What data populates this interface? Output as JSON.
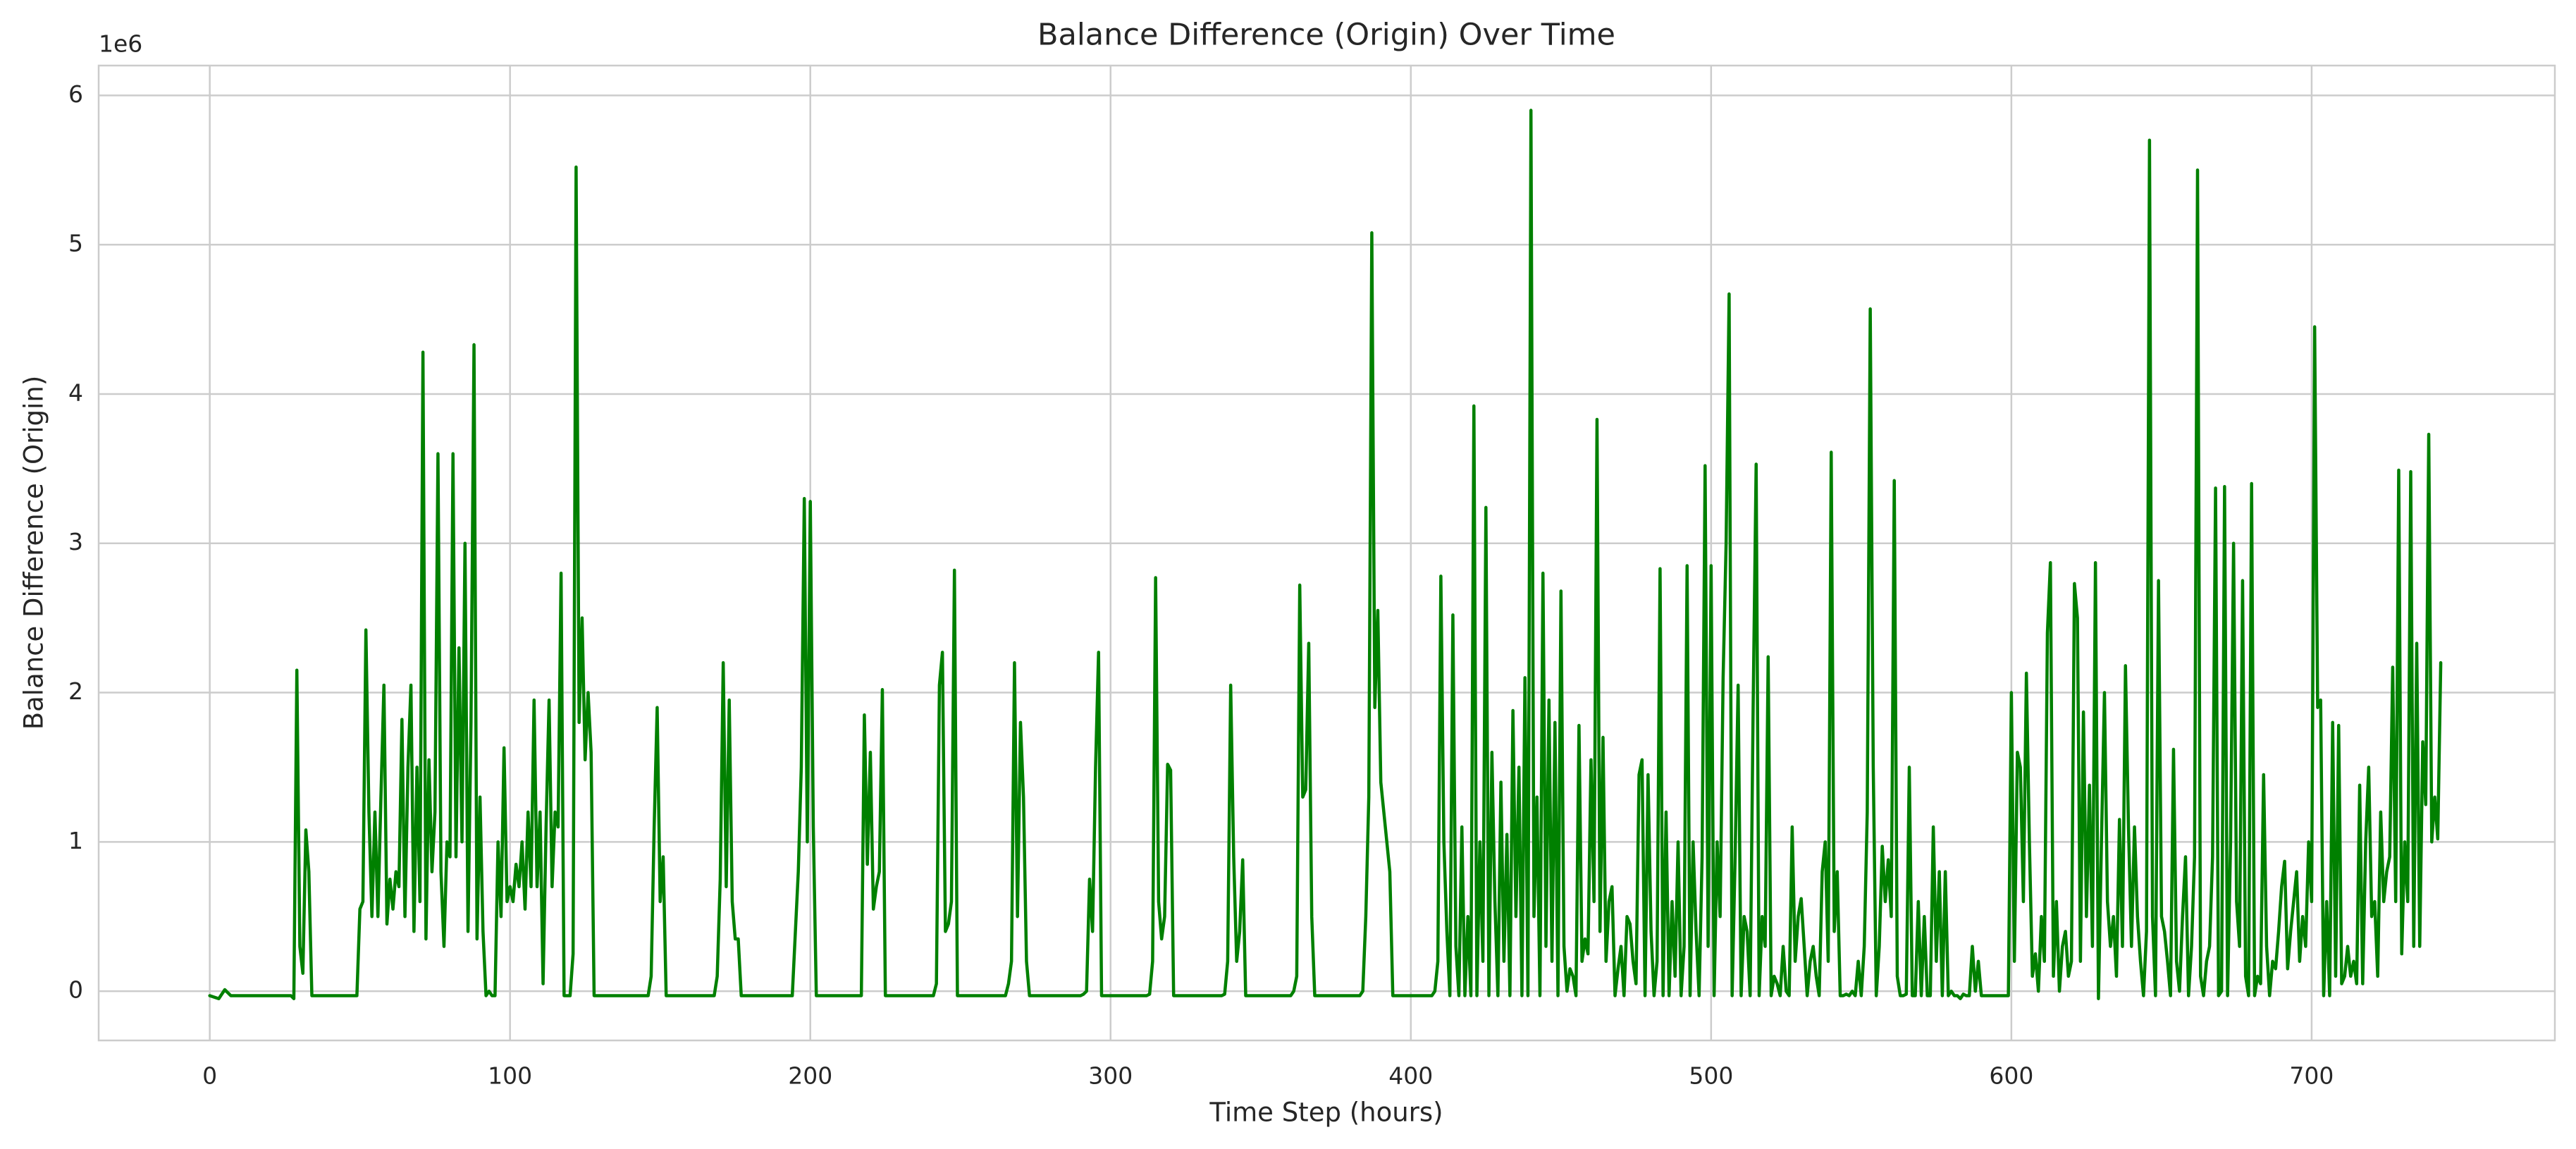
{
  "chart_data": {
    "type": "line",
    "title": "Balance Difference (Origin) Over Time",
    "x_label": "Time Step (hours)",
    "y_label": "Balance Difference (Origin)",
    "y_offset_text": "1e6",
    "color": "#008000",
    "grid": true,
    "xlim": [
      -37,
      781
    ],
    "ylim": [
      -0.33,
      6.2
    ],
    "xticks": [
      0,
      100,
      200,
      300,
      400,
      500,
      600,
      700
    ],
    "yticks": [
      0,
      1,
      2,
      3,
      4,
      5,
      6
    ],
    "x": [
      0,
      3,
      5,
      7,
      27,
      28,
      29,
      30,
      31,
      32,
      33,
      34,
      49,
      50,
      51,
      52,
      53,
      54,
      55,
      56,
      57,
      58,
      59,
      60,
      61,
      62,
      63,
      64,
      65,
      66,
      67,
      68,
      69,
      70,
      71,
      72,
      73,
      74,
      75,
      76,
      77,
      78,
      79,
      80,
      81,
      82,
      83,
      84,
      85,
      86,
      87,
      88,
      89,
      90,
      91,
      92,
      93,
      94,
      95,
      96,
      97,
      98,
      99,
      100,
      101,
      102,
      103,
      104,
      105,
      106,
      107,
      108,
      109,
      110,
      111,
      112,
      113,
      114,
      115,
      116,
      117,
      118,
      119,
      120,
      121,
      122,
      123,
      124,
      125,
      126,
      127,
      128,
      146,
      147,
      148,
      149,
      150,
      151,
      152,
      153,
      168,
      169,
      170,
      171,
      172,
      173,
      174,
      175,
      176,
      177,
      194,
      196,
      197,
      198,
      199,
      200,
      201,
      202,
      216,
      217,
      218,
      219,
      220,
      221,
      222,
      223,
      224,
      225,
      241,
      242,
      243,
      244,
      245,
      246,
      247,
      248,
      249,
      265,
      266,
      267,
      268,
      269,
      270,
      271,
      272,
      273,
      290,
      291,
      292,
      293,
      294,
      295,
      296,
      297,
      312,
      313,
      314,
      315,
      316,
      317,
      318,
      319,
      320,
      321,
      337,
      338,
      339,
      340,
      341,
      342,
      343,
      344,
      345,
      360,
      361,
      362,
      363,
      364,
      365,
      366,
      367,
      368,
      383,
      384,
      385,
      386,
      387,
      388,
      389,
      390,
      391,
      392,
      393,
      394,
      407,
      408,
      409,
      410,
      411,
      412,
      413,
      414,
      415,
      416,
      417,
      418,
      419,
      420,
      421,
      422,
      423,
      424,
      425,
      426,
      427,
      428,
      429,
      430,
      431,
      432,
      433,
      434,
      435,
      436,
      437,
      438,
      439,
      440,
      441,
      442,
      443,
      444,
      445,
      446,
      447,
      448,
      449,
      450,
      451,
      452,
      453,
      454,
      455,
      456,
      457,
      458,
      459,
      460,
      461,
      462,
      463,
      464,
      465,
      466,
      467,
      468,
      469,
      470,
      471,
      472,
      473,
      474,
      475,
      476,
      477,
      478,
      479,
      480,
      481,
      482,
      483,
      484,
      485,
      486,
      487,
      488,
      489,
      490,
      491,
      492,
      493,
      494,
      495,
      496,
      497,
      498,
      499,
      500,
      501,
      502,
      503,
      504,
      505,
      506,
      507,
      508,
      509,
      510,
      511,
      512,
      513,
      514,
      515,
      516,
      517,
      518,
      519,
      520,
      521,
      522,
      523,
      524,
      525,
      526,
      527,
      528,
      529,
      530,
      531,
      532,
      533,
      534,
      535,
      536,
      537,
      538,
      539,
      540,
      541,
      542,
      543,
      544,
      545,
      546,
      547,
      548,
      549,
      550,
      551,
      552,
      553,
      554,
      555,
      556,
      557,
      558,
      559,
      560,
      561,
      562,
      563,
      564,
      565,
      566,
      567,
      568,
      569,
      570,
      571,
      572,
      573,
      574,
      575,
      576,
      577,
      578,
      579,
      580,
      581,
      582,
      583,
      584,
      585,
      586,
      587,
      588,
      589,
      590,
      591,
      592,
      593,
      594,
      595,
      596,
      597,
      598,
      599,
      600,
      601,
      602,
      603,
      604,
      605,
      606,
      607,
      608,
      609,
      610,
      611,
      612,
      613,
      614,
      615,
      616,
      617,
      618,
      619,
      620,
      621,
      622,
      623,
      624,
      625,
      626,
      627,
      628,
      629,
      630,
      631,
      632,
      633,
      634,
      635,
      636,
      637,
      638,
      639,
      640,
      641,
      642,
      643,
      644,
      645,
      646,
      647,
      648,
      649,
      650,
      651,
      652,
      653,
      654,
      655,
      656,
      657,
      658,
      659,
      660,
      661,
      662,
      663,
      664,
      665,
      666,
      667,
      668,
      669,
      670,
      671,
      672,
      673,
      674,
      675,
      676,
      677,
      678,
      679,
      680,
      681,
      682,
      683,
      684,
      685,
      686,
      687,
      688,
      689,
      690,
      691,
      692,
      693,
      694,
      695,
      696,
      697,
      698,
      699,
      700,
      701,
      702,
      703,
      704,
      705,
      706,
      707,
      708,
      709,
      710,
      711,
      712,
      713,
      714,
      715,
      716,
      717,
      718,
      719,
      720,
      721,
      722,
      723,
      724,
      725,
      726,
      727,
      728,
      729,
      730,
      731,
      732,
      733,
      734,
      735,
      736,
      737,
      738,
      739,
      740,
      741,
      742,
      743
    ],
    "values": [
      -0.03,
      -0.05,
      0.01,
      -0.03,
      -0.03,
      -0.05,
      2.15,
      0.3,
      0.12,
      1.08,
      0.8,
      -0.03,
      -0.03,
      0.55,
      0.6,
      2.42,
      1.2,
      0.5,
      1.2,
      0.5,
      1.3,
      2.05,
      0.45,
      0.75,
      0.55,
      0.8,
      0.7,
      1.82,
      0.5,
      1.5,
      2.05,
      0.4,
      1.5,
      0.6,
      4.28,
      0.35,
      1.55,
      0.8,
      1.2,
      3.6,
      0.8,
      0.3,
      1.0,
      0.9,
      3.6,
      0.9,
      2.3,
      1.0,
      3.0,
      0.4,
      1.8,
      4.33,
      0.35,
      1.3,
      0.4,
      -0.03,
      0.0,
      -0.03,
      -0.03,
      1.0,
      0.5,
      1.63,
      0.6,
      0.7,
      0.6,
      0.85,
      0.7,
      1.0,
      0.55,
      1.2,
      0.7,
      1.95,
      0.7,
      1.2,
      0.05,
      1.1,
      1.95,
      0.7,
      1.2,
      1.1,
      2.8,
      -0.03,
      -0.03,
      -0.03,
      0.25,
      5.52,
      1.8,
      2.5,
      1.55,
      2.0,
      1.6,
      -0.03,
      -0.03,
      0.1,
      1.1,
      1.9,
      0.6,
      0.9,
      -0.03,
      -0.03,
      -0.03,
      0.1,
      0.75,
      2.2,
      0.7,
      1.95,
      0.6,
      0.35,
      0.35,
      -0.03,
      -0.03,
      0.8,
      1.5,
      3.3,
      1.0,
      3.28,
      1.1,
      -0.03,
      -0.03,
      -0.03,
      1.85,
      0.85,
      1.6,
      0.55,
      0.7,
      0.8,
      2.02,
      -0.03,
      -0.03,
      0.05,
      2.05,
      2.27,
      0.4,
      0.45,
      0.6,
      2.82,
      -0.03,
      -0.03,
      0.05,
      0.2,
      2.2,
      0.5,
      1.8,
      1.3,
      0.2,
      -0.03,
      -0.03,
      -0.02,
      0.0,
      0.75,
      0.4,
      1.5,
      2.27,
      -0.03,
      -0.03,
      -0.02,
      0.2,
      2.77,
      0.6,
      0.35,
      0.5,
      1.52,
      1.48,
      -0.03,
      -0.03,
      -0.02,
      0.2,
      2.05,
      0.9,
      0.2,
      0.4,
      0.88,
      -0.03,
      -0.03,
      0.0,
      0.1,
      2.72,
      1.3,
      1.35,
      2.33,
      0.5,
      -0.03,
      -0.03,
      0.0,
      0.5,
      1.3,
      5.08,
      1.9,
      2.55,
      1.4,
      1.2,
      1.0,
      0.8,
      -0.03,
      -0.03,
      0.0,
      0.2,
      2.78,
      1.0,
      0.4,
      -0.03,
      2.52,
      0.3,
      -0.03,
      1.1,
      -0.03,
      0.5,
      -0.03,
      3.92,
      -0.03,
      1.0,
      0.2,
      3.24,
      -0.03,
      1.6,
      0.6,
      -0.03,
      1.4,
      0.2,
      1.05,
      -0.03,
      1.88,
      0.5,
      1.5,
      -0.03,
      2.1,
      -0.03,
      5.9,
      0.5,
      1.3,
      -0.03,
      2.8,
      0.3,
      1.95,
      0.2,
      1.8,
      -0.03,
      2.68,
      0.3,
      0.0,
      0.15,
      0.1,
      -0.03,
      1.78,
      0.2,
      0.35,
      0.25,
      1.55,
      0.6,
      3.83,
      0.4,
      1.7,
      0.2,
      0.6,
      0.7,
      -0.03,
      0.15,
      0.3,
      -0.03,
      0.5,
      0.45,
      0.2,
      0.05,
      1.45,
      1.55,
      -0.03,
      1.45,
      0.4,
      -0.03,
      0.2,
      2.83,
      -0.03,
      1.2,
      -0.03,
      0.6,
      0.1,
      1.0,
      -0.03,
      0.3,
      2.85,
      -0.03,
      1.0,
      0.4,
      -0.03,
      0.9,
      3.52,
      0.3,
      2.85,
      -0.03,
      1.0,
      0.5,
      2.1,
      3.0,
      4.67,
      -0.03,
      0.9,
      2.05,
      -0.03,
      0.5,
      0.4,
      -0.03,
      1.9,
      3.53,
      -0.03,
      0.5,
      0.3,
      2.24,
      -0.03,
      0.1,
      0.05,
      -0.03,
      0.3,
      0.0,
      -0.03,
      1.1,
      0.2,
      0.5,
      0.62,
      0.3,
      -0.03,
      0.2,
      0.3,
      0.1,
      -0.03,
      0.8,
      1.0,
      0.2,
      3.61,
      0.4,
      0.8,
      -0.03,
      -0.03,
      -0.02,
      -0.03,
      0.0,
      -0.03,
      0.2,
      -0.03,
      0.3,
      1.2,
      4.57,
      1.5,
      -0.03,
      0.3,
      0.97,
      0.6,
      0.88,
      0.5,
      3.42,
      0.1,
      -0.03,
      -0.03,
      -0.02,
      1.5,
      -0.03,
      -0.03,
      0.6,
      -0.03,
      0.5,
      -0.03,
      -0.03,
      1.1,
      0.2,
      0.8,
      -0.03,
      0.8,
      -0.03,
      0.0,
      -0.03,
      -0.03,
      -0.05,
      -0.02,
      -0.03,
      -0.03,
      0.3,
      0.0,
      0.2,
      -0.03,
      -0.03,
      -0.03,
      -0.03,
      -0.03,
      -0.03,
      -0.03,
      -0.03,
      -0.03,
      -0.03,
      2.0,
      0.2,
      1.6,
      1.5,
      0.6,
      2.13,
      1.0,
      0.1,
      0.25,
      0.0,
      0.5,
      0.2,
      2.4,
      2.87,
      0.1,
      0.6,
      0.0,
      0.3,
      0.4,
      0.1,
      0.2,
      2.73,
      2.5,
      0.2,
      1.87,
      0.5,
      1.38,
      0.3,
      2.87,
      -0.05,
      1.0,
      2.0,
      0.6,
      0.3,
      0.5,
      0.1,
      1.15,
      0.3,
      2.18,
      1.1,
      0.3,
      1.1,
      0.5,
      0.2,
      -0.03,
      0.4,
      5.7,
      0.5,
      -0.03,
      2.75,
      0.5,
      0.4,
      0.2,
      -0.03,
      1.62,
      0.2,
      0.0,
      0.5,
      0.9,
      -0.03,
      0.3,
      0.9,
      5.5,
      0.1,
      -0.03,
      0.2,
      0.3,
      0.9,
      3.37,
      -0.03,
      0.0,
      3.38,
      -0.03,
      1.0,
      3.0,
      0.6,
      0.3,
      2.75,
      0.1,
      -0.03,
      3.4,
      -0.03,
      0.1,
      0.05,
      1.45,
      0.3,
      -0.03,
      0.2,
      0.15,
      0.4,
      0.7,
      0.87,
      0.15,
      0.4,
      0.6,
      0.8,
      0.2,
      0.5,
      0.3,
      1.0,
      0.6,
      4.45,
      1.9,
      1.95,
      -0.03,
      0.6,
      -0.03,
      1.8,
      0.1,
      1.78,
      0.05,
      0.1,
      0.3,
      0.1,
      0.2,
      0.05,
      1.38,
      0.05,
      1.0,
      1.5,
      0.5,
      0.6,
      0.1,
      1.2,
      0.6,
      0.8,
      0.9,
      2.17,
      0.6,
      3.49,
      0.25,
      1.0,
      0.6,
      3.48,
      0.3,
      2.33,
      0.3,
      1.67,
      1.25,
      3.73,
      1.0,
      1.3,
      1.02,
      2.2
    ]
  }
}
